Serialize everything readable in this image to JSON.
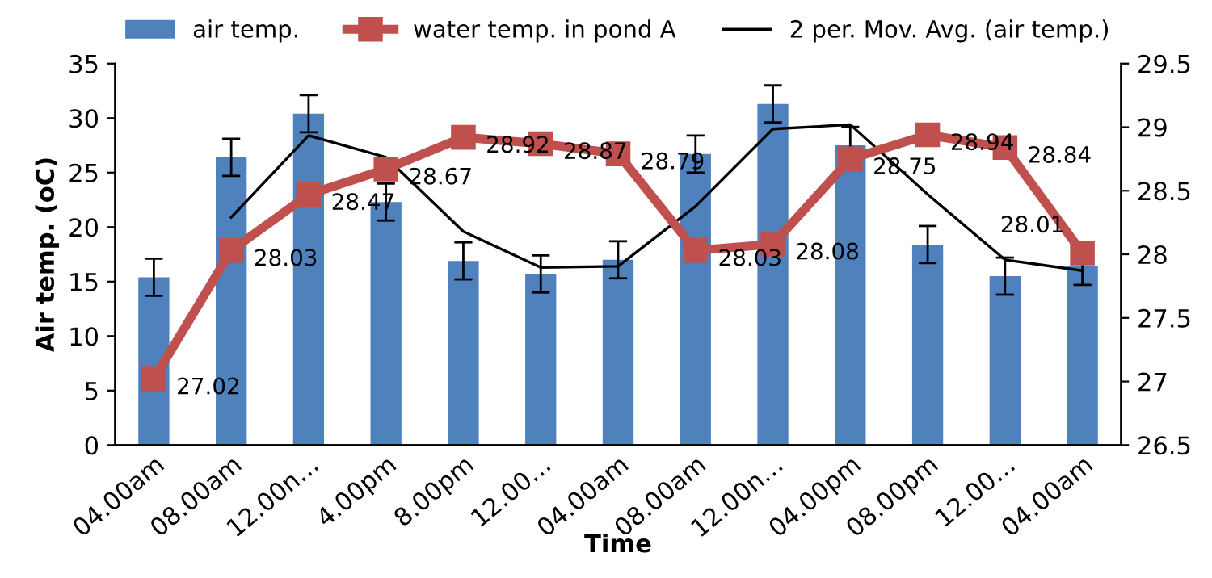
{
  "chart_data": {
    "type": "bar",
    "xlabel": "Time",
    "ylabel": "Air temp. (oC)",
    "categories": [
      "04.00am",
      "08.00am",
      "12.00n…",
      "4.00pm",
      "8.00pm",
      "12.00…",
      "04.00am",
      "08.00am",
      "12.00n…",
      "04.00pm",
      "08.00pm",
      "12.00…",
      "04.00am"
    ],
    "series": [
      {
        "name": "air temp.",
        "color": "#4f81bd",
        "values": [
          15.4,
          26.4,
          30.4,
          22.3,
          16.9,
          15.7,
          17.0,
          26.7,
          31.3,
          27.5,
          18.4,
          15.5,
          16.4
        ],
        "errors": [
          1.7,
          1.7,
          1.7,
          1.7,
          1.7,
          1.7,
          1.7,
          1.7,
          1.7,
          1.7,
          1.7,
          1.7,
          1.7
        ]
      },
      {
        "name": "water temp. in pond A",
        "type": "line",
        "axis": "y2",
        "color": "#c0504d",
        "marker": "square",
        "values": [
          27.02,
          28.03,
          28.47,
          28.67,
          28.92,
          28.87,
          28.79,
          28.03,
          28.08,
          28.75,
          28.94,
          28.84,
          28.01
        ],
        "value_labels": [
          "27.02",
          "28.03",
          "28.47",
          "28.67",
          "28.92",
          "28.87",
          "28.79",
          "28.03",
          "28.08",
          "28.75",
          "28.94",
          "28.84",
          "28.01"
        ]
      },
      {
        "name": "2 per. Mov. Avg. (air temp.)",
        "type": "line",
        "color": "#000000",
        "marker": "none",
        "values": [
          null,
          20.9,
          28.4,
          26.4,
          19.6,
          16.3,
          16.4,
          21.9,
          29.0,
          29.4,
          23.0,
          17.0,
          16.0
        ]
      }
    ],
    "ylim": [
      0,
      35
    ],
    "yticks": [
      0,
      5,
      10,
      15,
      20,
      25,
      30,
      35
    ],
    "y2lim": [
      26.5,
      29.5
    ],
    "y2ticks": [
      26.5,
      27,
      27.5,
      28,
      28.5,
      29,
      29.5
    ],
    "grid": false,
    "legend": "top"
  }
}
